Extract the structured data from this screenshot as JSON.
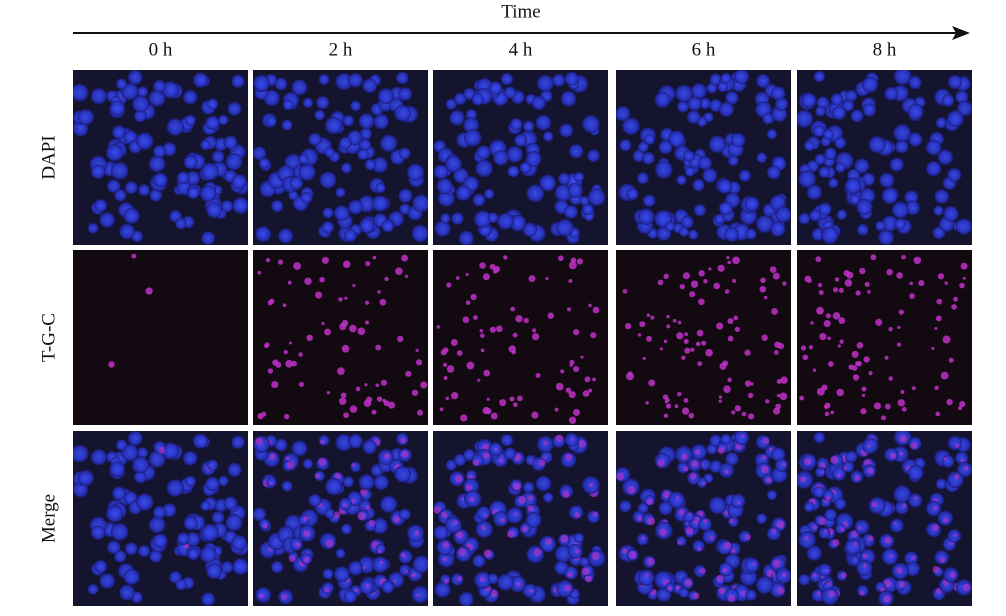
{
  "header": {
    "title": "Time"
  },
  "columns": [
    "0 h",
    "2 h",
    "4 h",
    "6 h",
    "8 h"
  ],
  "rows": [
    "DAPI",
    "T-G-C",
    "Merge"
  ]
}
